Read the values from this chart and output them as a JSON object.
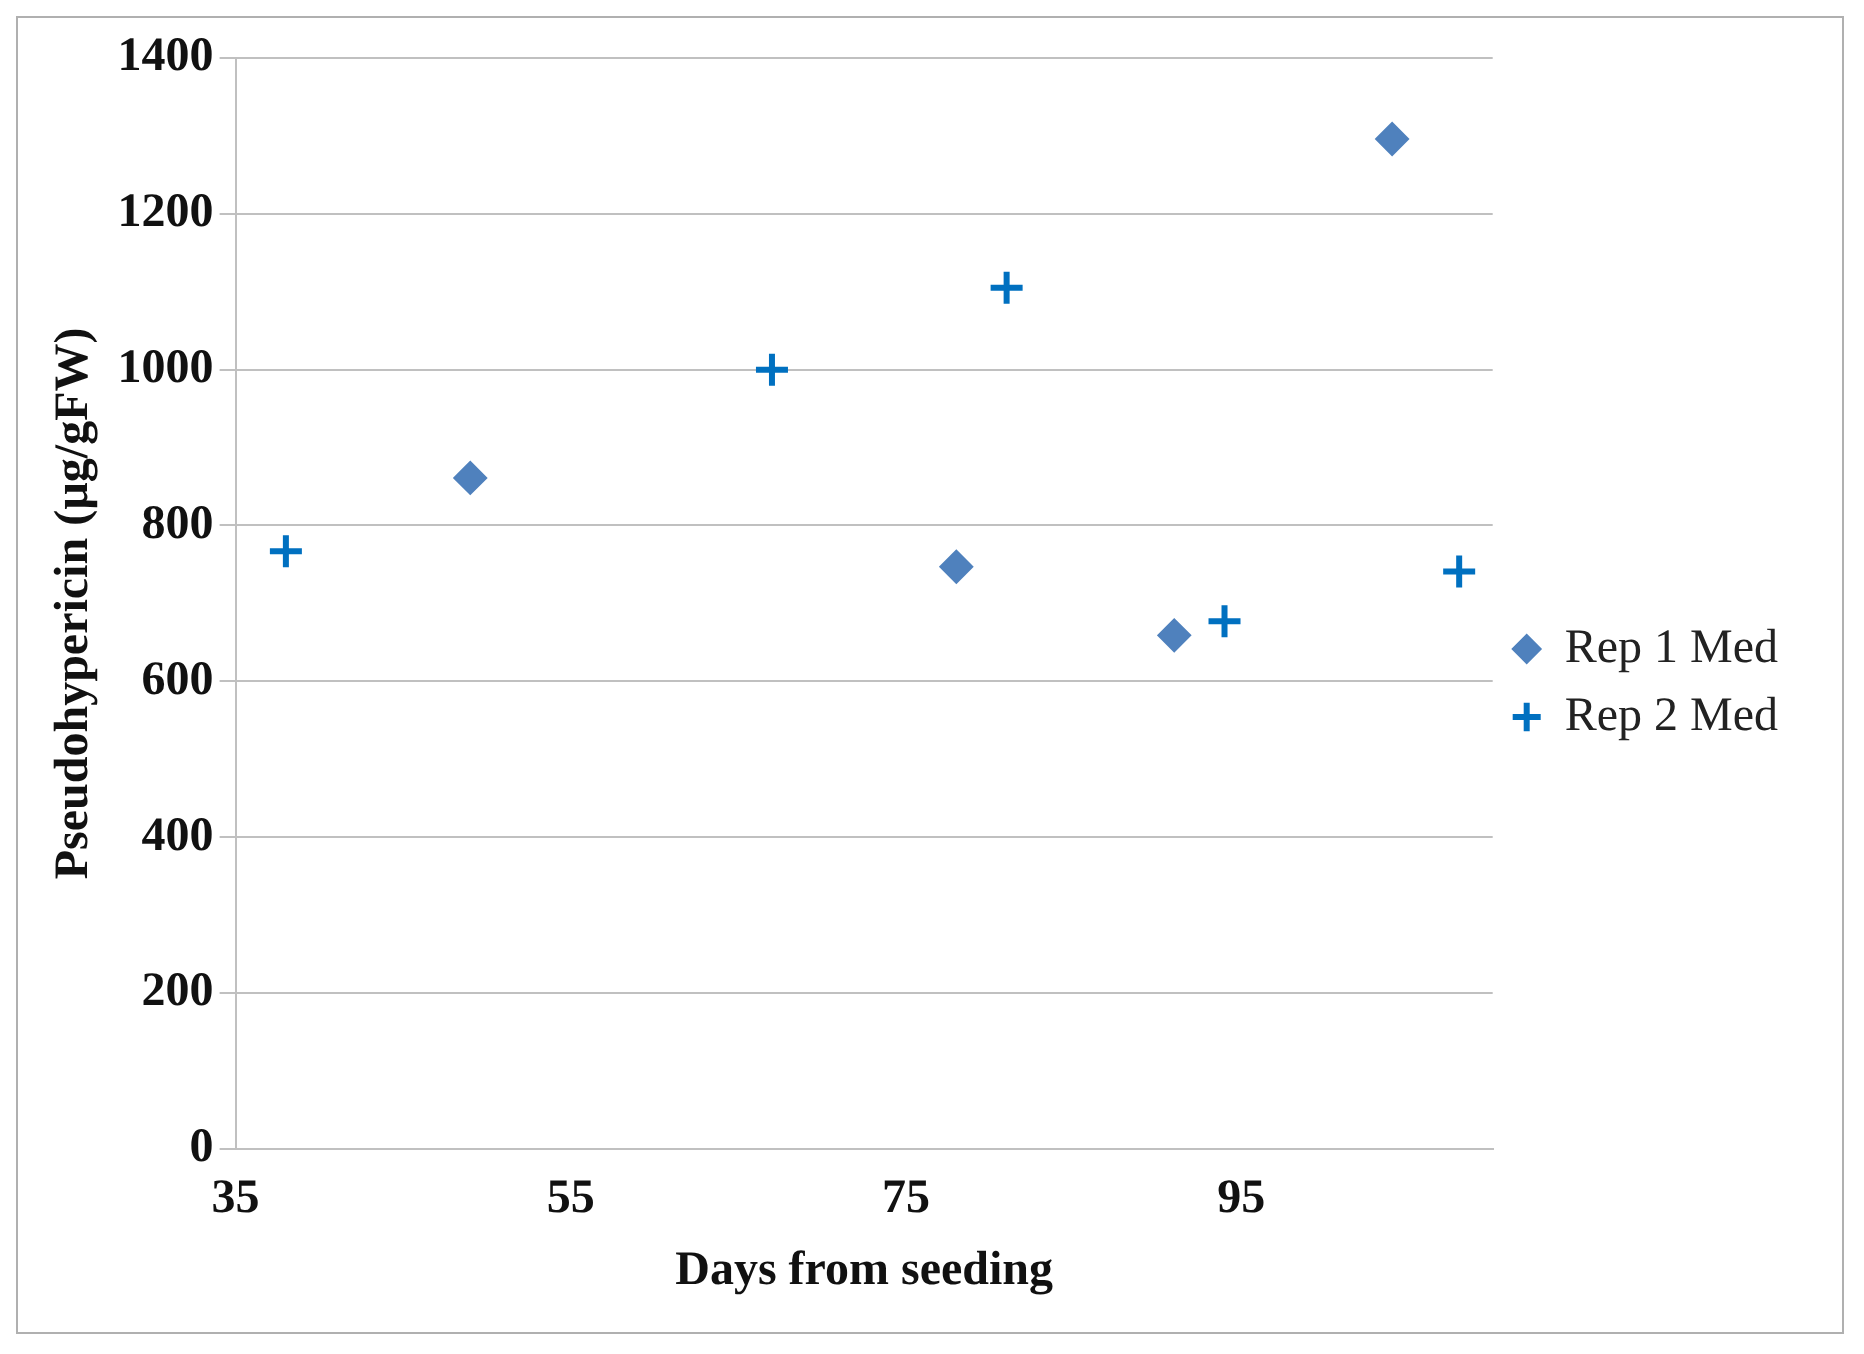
{
  "chart_data": {
    "type": "scatter",
    "xlabel": "Days from seeding",
    "ylabel": "Pseudohypericin (µg/gFW)",
    "xlim": [
      35,
      110
    ],
    "xticks": [
      35,
      55,
      75,
      95
    ],
    "ylim": [
      0,
      1400
    ],
    "yticks": [
      0,
      200,
      400,
      600,
      800,
      1000,
      1200,
      1400
    ],
    "grid": "y",
    "legend": "right",
    "series": [
      {
        "name": "Rep 1 Med",
        "color": "#4f81bd",
        "marker": "diamond",
        "x": [
          49,
          78,
          91,
          104
        ],
        "values": [
          861,
          747,
          659,
          1296
        ]
      },
      {
        "name": "Rep 2 Med",
        "color": "#0070c0",
        "marker": "cross",
        "x": [
          38,
          67,
          81,
          94,
          108
        ],
        "values": [
          767,
          1000,
          1105,
          677,
          741
        ]
      }
    ]
  }
}
